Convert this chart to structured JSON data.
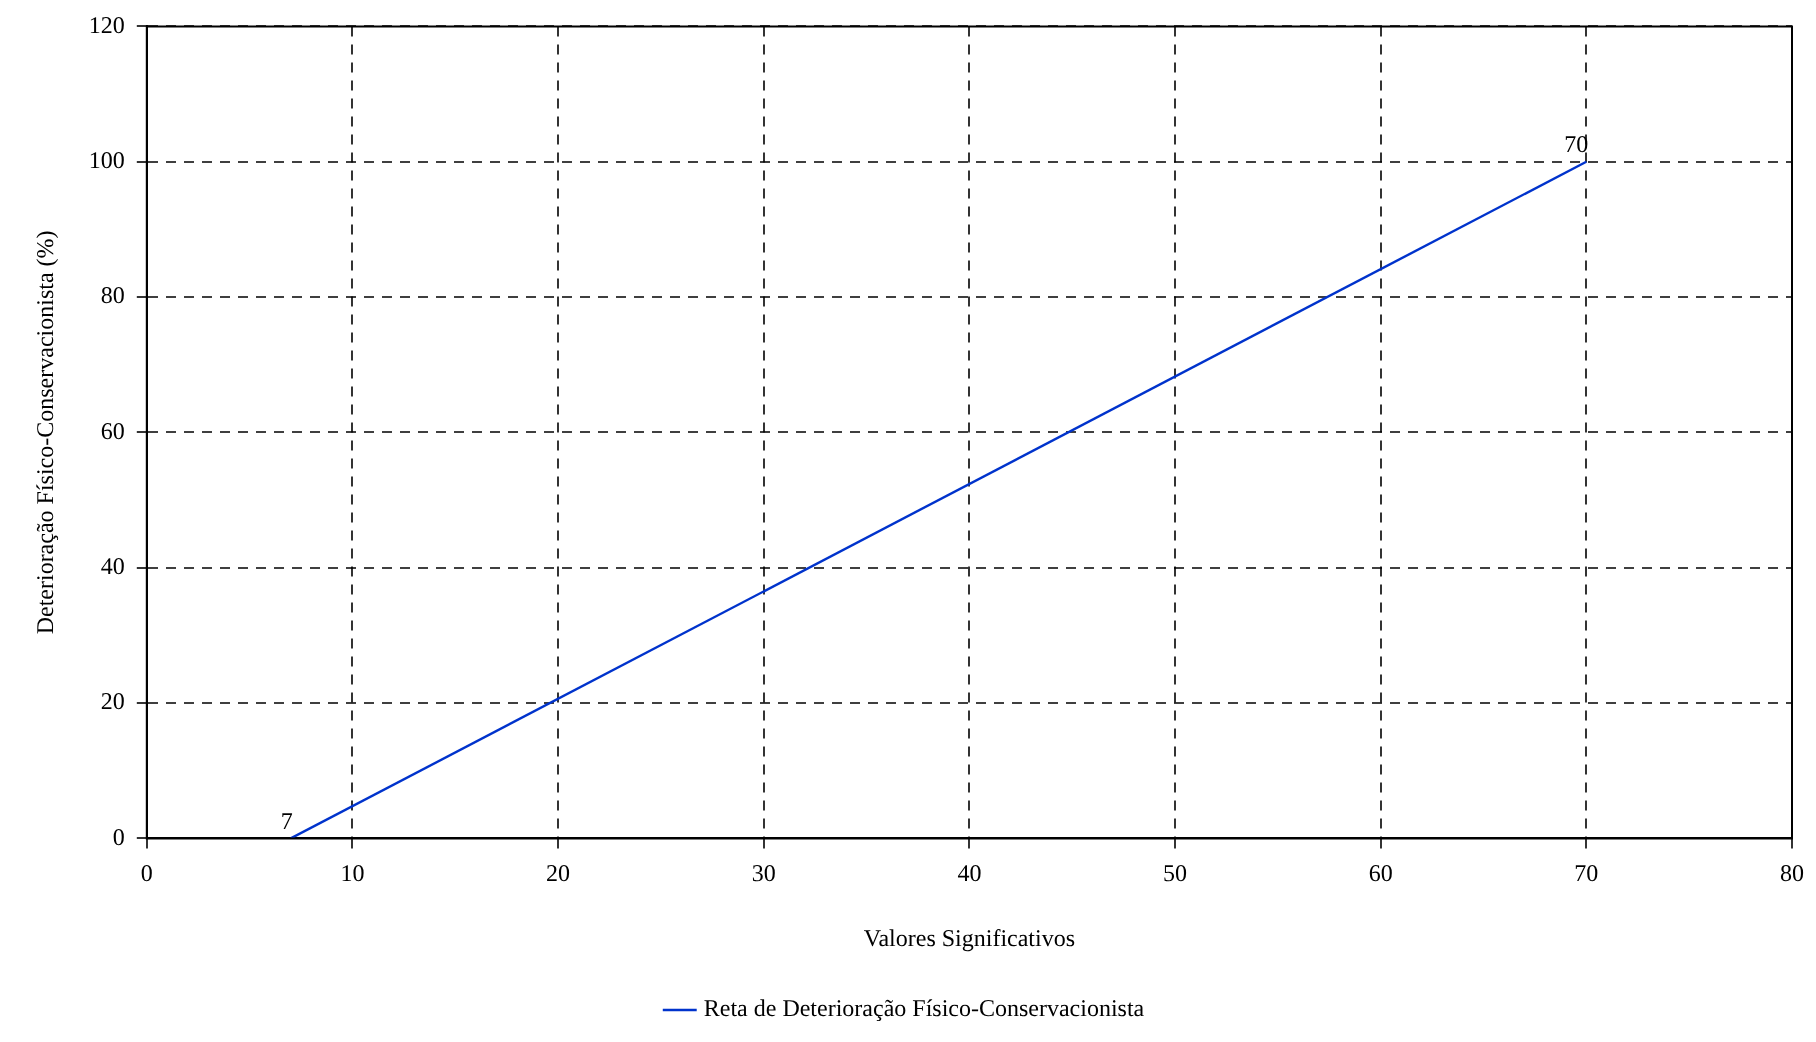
{
  "chart_data": {
    "type": "line",
    "xlabel": "Valores Significativos",
    "ylabel": "Deterioração Físico-Conservacionista (%)",
    "x": [
      7,
      70
    ],
    "series": [
      {
        "name": "Reta de Deterioração Físico-Conservacionista",
        "color": "#0033cc",
        "values": [
          0,
          100
        ]
      }
    ],
    "xlim": [
      0,
      80
    ],
    "xticks": [
      0,
      10,
      20,
      30,
      40,
      50,
      60,
      70,
      80
    ],
    "ylim": [
      0,
      120
    ],
    "yticks": [
      0,
      20,
      40,
      60,
      80,
      100,
      120
    ],
    "grid": true,
    "line_style": "solid",
    "marker": "none",
    "legend": "bottom",
    "annotations": [
      {
        "text": "7",
        "x": 7,
        "y": 0
      },
      {
        "text": "70",
        "x": 70,
        "y": 100
      }
    ]
  }
}
